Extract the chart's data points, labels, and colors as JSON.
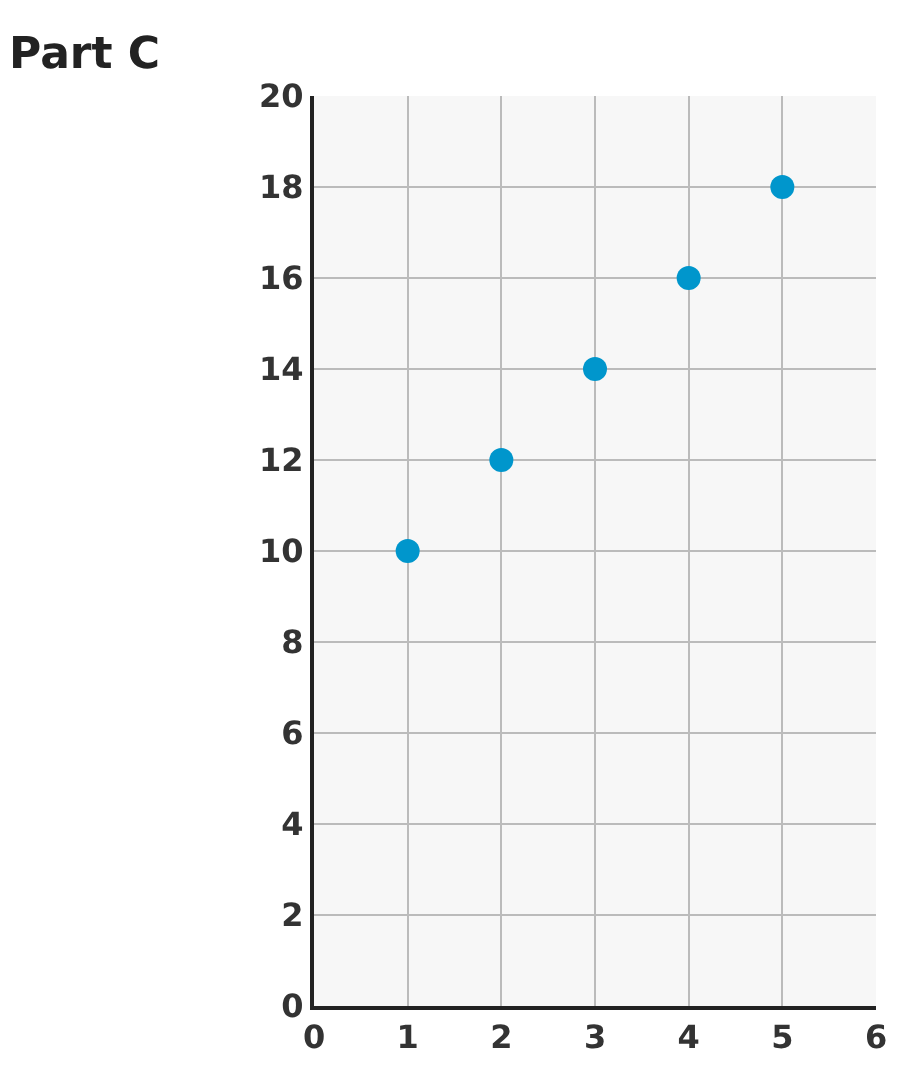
{
  "chart_data": {
    "type": "scatter",
    "title": "Part C",
    "x": [
      1,
      2,
      3,
      4,
      5
    ],
    "series": [
      {
        "color": "#0096cc",
        "values": [
          10,
          12,
          14,
          16,
          18
        ]
      }
    ],
    "xlim": [
      0,
      6
    ],
    "xticks": [
      0,
      1,
      2,
      3,
      4,
      5,
      6
    ],
    "ylim": [
      0,
      20
    ],
    "yticks": [
      0,
      2,
      4,
      6,
      8,
      10,
      12,
      14,
      16,
      18,
      20
    ],
    "grid": true,
    "marker": "circle"
  }
}
